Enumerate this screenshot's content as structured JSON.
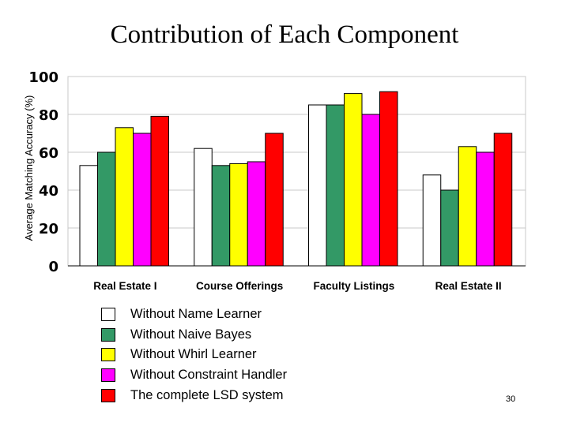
{
  "slide": {
    "title": "Contribution of Each Component",
    "page_number": "30"
  },
  "chart_data": {
    "type": "bar",
    "title": "Contribution of Each Component",
    "xlabel": "",
    "ylabel": "Average Matching Accuracy (%)",
    "ylim": [
      0,
      100
    ],
    "yticks": [
      0,
      20,
      40,
      60,
      80,
      100
    ],
    "grid": true,
    "legend_position": "bottom",
    "categories": [
      "Real Estate I",
      "Course Offerings",
      "Faculty Listings",
      "Real Estate II"
    ],
    "series": [
      {
        "name": "Without Name Learner",
        "color": "#ffffff",
        "values": [
          53,
          62,
          85,
          48
        ]
      },
      {
        "name": "Without Naive Bayes",
        "color": "#339966",
        "values": [
          60,
          53,
          85,
          40
        ]
      },
      {
        "name": "Without Whirl Learner",
        "color": "#ffff00",
        "values": [
          73,
          54,
          91,
          63
        ]
      },
      {
        "name": "Without Constraint Handler",
        "color": "#ff00ff",
        "values": [
          70,
          55,
          80,
          60
        ]
      },
      {
        "name": "The complete LSD system",
        "color": "#ff0000",
        "values": [
          79,
          70,
          92,
          70
        ]
      }
    ]
  }
}
